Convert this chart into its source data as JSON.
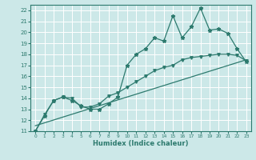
{
  "title": "",
  "xlabel": "Humidex (Indice chaleur)",
  "bg_color": "#cce8e8",
  "grid_color": "#ffffff",
  "line_color": "#2d7a6e",
  "xlim": [
    -0.5,
    23.5
  ],
  "ylim": [
    11,
    22.5
  ],
  "yticks": [
    11,
    12,
    13,
    14,
    15,
    16,
    17,
    18,
    19,
    20,
    21,
    22
  ],
  "xticks": [
    0,
    1,
    2,
    3,
    4,
    5,
    6,
    7,
    8,
    9,
    10,
    11,
    12,
    13,
    14,
    15,
    16,
    17,
    18,
    19,
    20,
    21,
    22,
    23
  ],
  "curve1_x": [
    0,
    1,
    2,
    3,
    4,
    5,
    6,
    7,
    8,
    9,
    10,
    11,
    12,
    13,
    14,
    15,
    16,
    17,
    18,
    19,
    20,
    21,
    22,
    23
  ],
  "curve1_y": [
    11.0,
    12.4,
    13.8,
    14.1,
    13.8,
    13.3,
    13.0,
    13.0,
    13.5,
    14.1,
    17.0,
    18.0,
    18.5,
    19.5,
    19.2,
    21.5,
    19.5,
    20.5,
    22.2,
    20.2,
    20.3,
    19.9,
    18.5,
    17.3
  ],
  "curve2_x": [
    0,
    1,
    2,
    3,
    4,
    5,
    6,
    7,
    8,
    9,
    10,
    11,
    12,
    13,
    14,
    15,
    16,
    17,
    18,
    19,
    20,
    21,
    22,
    23
  ],
  "curve2_y": [
    11.0,
    12.5,
    13.8,
    14.1,
    14.0,
    13.2,
    13.2,
    13.5,
    14.2,
    14.5,
    15.0,
    15.5,
    16.0,
    16.5,
    16.8,
    17.0,
    17.5,
    17.7,
    17.8,
    17.9,
    18.0,
    18.0,
    17.9,
    17.4
  ],
  "curve3_x": [
    0,
    23
  ],
  "curve3_y": [
    11.5,
    17.5
  ],
  "linewidth": 0.9,
  "marker_size1": 3.5,
  "marker_size2": 2.5,
  "marker_size3": 2.5
}
